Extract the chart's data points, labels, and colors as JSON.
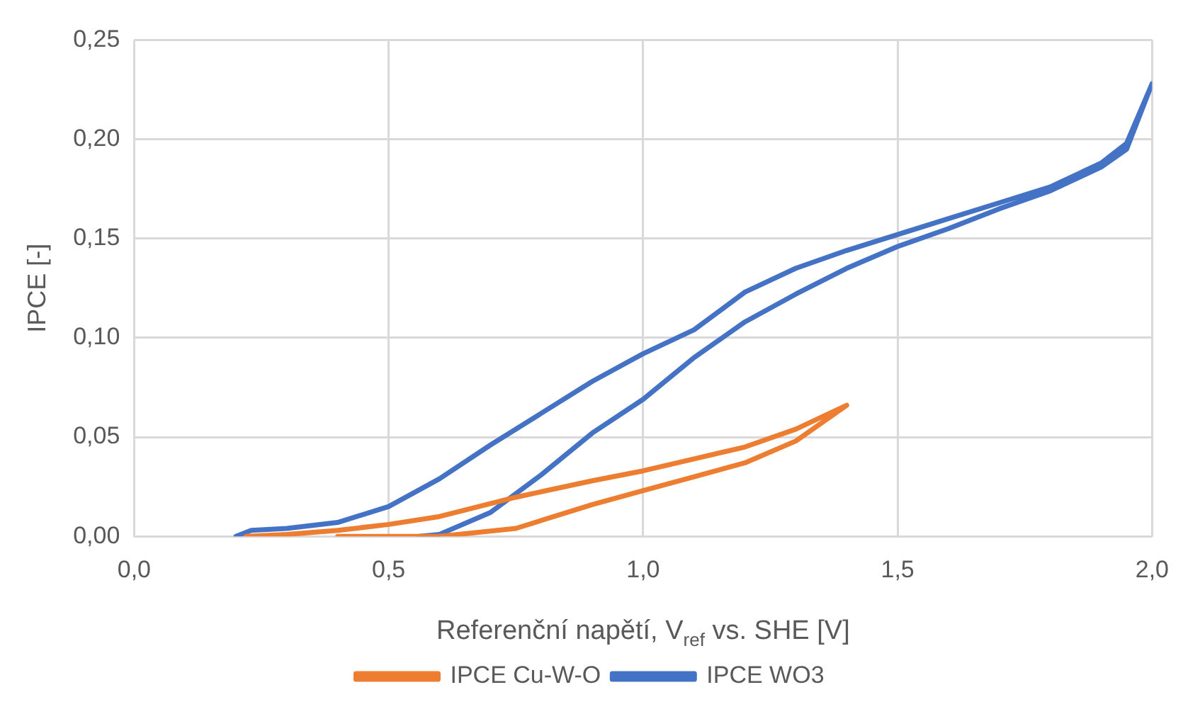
{
  "chart_data": {
    "type": "line",
    "xlabel": "Referenční napětí, V$_{ref}$ vs. SHE [V]",
    "ylabel": "IPCE [-]",
    "xlim": [
      0,
      2
    ],
    "xticks": [
      {
        "value": 0,
        "label": "0,0"
      },
      {
        "value": 0.5,
        "label": "0,5"
      },
      {
        "value": 1,
        "label": "1,0"
      },
      {
        "value": 1.5,
        "label": "1,5"
      },
      {
        "value": 2,
        "label": "2,0"
      }
    ],
    "ylim": [
      0,
      0.25
    ],
    "yticks": [
      {
        "value": 0,
        "label": "0,00"
      },
      {
        "value": 0.05,
        "label": "0,05"
      },
      {
        "value": 0.1,
        "label": "0,10"
      },
      {
        "value": 0.15,
        "label": "0,15"
      },
      {
        "value": 0.2,
        "label": "0,20"
      },
      {
        "value": 0.25,
        "label": "0,25"
      }
    ],
    "grid": true,
    "legend": "bottom",
    "marker": "none",
    "line_style": "solid",
    "series": [
      {
        "name": "IPCE Cu-W-O",
        "color": "#ed7d31",
        "x": [
          0.22,
          0.3,
          0.4,
          0.5,
          0.6,
          0.75,
          0.9,
          1.0,
          1.1,
          1.2,
          1.3,
          1.4,
          1.3,
          1.2,
          1.1,
          1.0,
          0.9,
          0.75,
          0.6,
          0.5,
          0.4
        ],
        "values": [
          0,
          0.001,
          0.003,
          0.006,
          0.01,
          0.0197,
          0.028,
          0.033,
          0.039,
          0.045,
          0.054,
          0.066,
          0.048,
          0.037,
          0.03,
          0.023,
          0.016,
          0.004,
          0,
          0,
          0
        ]
      },
      {
        "name": "IPCE WO3",
        "color": "#4472c4",
        "x": [
          0.2,
          0.23,
          0.3,
          0.4,
          0.5,
          0.6,
          0.7,
          0.8,
          0.9,
          1.0,
          1.1,
          1.2,
          1.3,
          1.4,
          1.5,
          1.6,
          1.7,
          1.8,
          1.9,
          1.95,
          2.0,
          1.95,
          1.9,
          1.8,
          1.7,
          1.6,
          1.5,
          1.4,
          1.3,
          1.2,
          1.1,
          1.0,
          0.9,
          0.8,
          0.7,
          0.6,
          0.56
        ],
        "values": [
          0,
          0.003,
          0.004,
          0.007,
          0.015,
          0.029,
          0.046,
          0.062,
          0.078,
          0.092,
          0.104,
          0.123,
          0.135,
          0.144,
          0.152,
          0.16,
          0.168,
          0.176,
          0.188,
          0.198,
          0.228,
          0.195,
          0.186,
          0.174,
          0.165,
          0.155,
          0.146,
          0.135,
          0.122,
          0.108,
          0.09,
          0.069,
          0.052,
          0.031,
          0.012,
          0.001,
          0
        ]
      }
    ]
  }
}
